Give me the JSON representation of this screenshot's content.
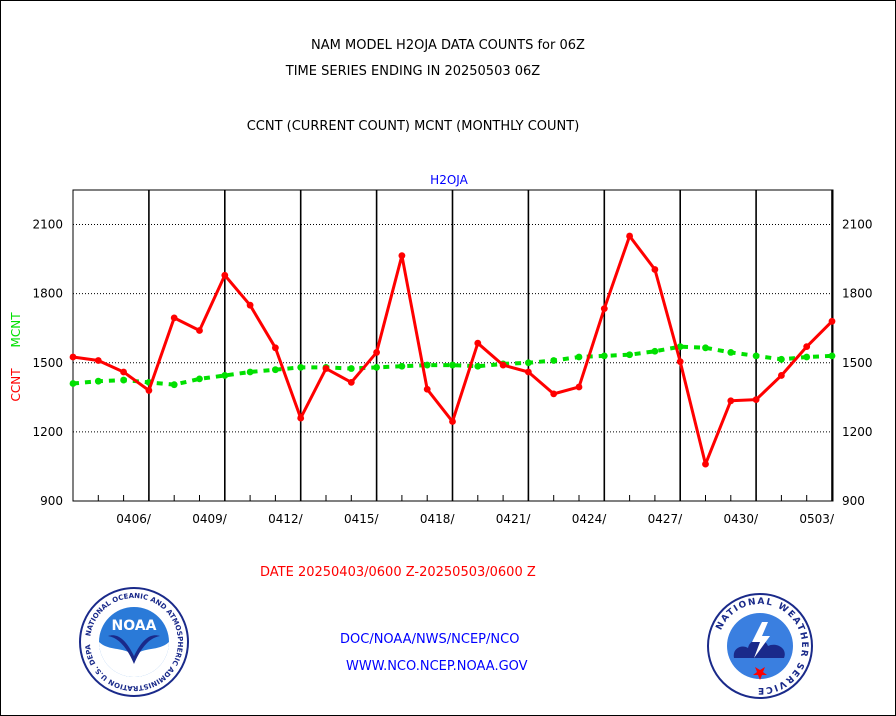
{
  "header": {
    "line1": "NAM MODEL H2OJA DATA COUNTS for 06Z",
    "line2": "TIME SERIES ENDING IN 20250503 06Z",
    "line3": "CCNT (CURRENT COUNT) MCNT (MONTHLY COUNT)"
  },
  "chart_data": {
    "type": "line",
    "title": "H2OJA",
    "ylabel_ccnt": "CCNT",
    "ylabel_mcnt": "MCNT",
    "ylim": [
      900,
      2250
    ],
    "yticks": [
      900,
      1200,
      1500,
      1800,
      2100
    ],
    "ytick_labels": [
      "900",
      "1200",
      "1500",
      "1800",
      "2100"
    ],
    "xtick_labels": [
      "0406/",
      "0409/",
      "0412/",
      "0415/",
      "0418/",
      "0421/",
      "0424/",
      "0427/",
      "0430/",
      "0503/"
    ],
    "grid": true,
    "colors": {
      "ccnt": "#ff0000",
      "mcnt": "#00e000",
      "title": "#0000ff"
    },
    "series": [
      {
        "name": "CCNT",
        "values": [
          1525,
          1510,
          1460,
          1380,
          1695,
          1640,
          1880,
          1750,
          1565,
          1260,
          1475,
          1415,
          1545,
          1965,
          1385,
          1245,
          1585,
          1490,
          1460,
          1365,
          1395,
          1735,
          2050,
          1905,
          1505,
          1060,
          1335,
          1340,
          1445,
          1570,
          1680
        ]
      },
      {
        "name": "MCNT",
        "values": [
          1410,
          1420,
          1425,
          1415,
          1405,
          1430,
          1445,
          1460,
          1470,
          1480,
          1480,
          1475,
          1480,
          1485,
          1490,
          1490,
          1485,
          1495,
          1500,
          1510,
          1525,
          1530,
          1535,
          1550,
          1570,
          1565,
          1545,
          1530,
          1515,
          1525,
          1530
        ]
      }
    ]
  },
  "date_range": "DATE 20250403/0600 Z-20250503/0600 Z",
  "footer": {
    "line1": "DOC/NOAA/NWS/NCEP/NCO",
    "line2": "WWW.NCO.NCEP.NOAA.GOV"
  },
  "logos": {
    "noaa_text": "NOAA",
    "noaa_ring": "NATIONAL OCEANIC AND ATMOSPHERIC ADMINISTRATION U.S. DEPARTMENT OF COMMERCE",
    "nws_ring": "NATIONAL WEATHER SERVICE"
  }
}
